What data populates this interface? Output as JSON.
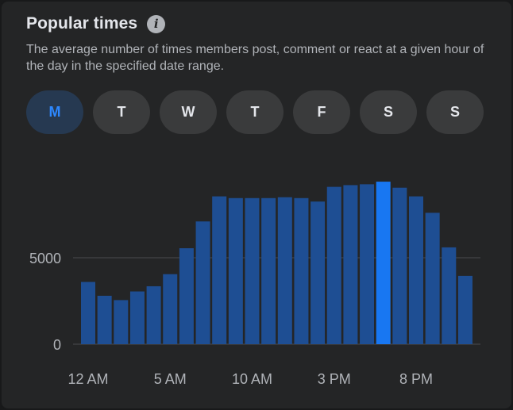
{
  "header": {
    "title": "Popular times",
    "info_icon": "info-icon",
    "subtitle": "The average number of times members post, comment or react at a given hour of the day in the specified date range."
  },
  "days": [
    {
      "label": "M",
      "selected": true
    },
    {
      "label": "T",
      "selected": false
    },
    {
      "label": "W",
      "selected": false
    },
    {
      "label": "T",
      "selected": false
    },
    {
      "label": "F",
      "selected": false
    },
    {
      "label": "S",
      "selected": false
    },
    {
      "label": "S",
      "selected": false
    }
  ],
  "colors": {
    "bar": "#1e4e93",
    "bar_highlight": "#1877f2",
    "selected_day_bg": "#263951",
    "selected_day_text": "#2d88ff",
    "gridline": "#4a4b4d"
  },
  "chart_data": {
    "type": "bar",
    "x": [
      0,
      1,
      2,
      3,
      4,
      5,
      6,
      7,
      8,
      9,
      10,
      11,
      12,
      13,
      14,
      15,
      16,
      17,
      18,
      19,
      20,
      21,
      22,
      23
    ],
    "values": [
      3600,
      2800,
      2550,
      3050,
      3350,
      4050,
      5550,
      7100,
      8550,
      8450,
      8450,
      8450,
      8500,
      8450,
      8250,
      9100,
      9200,
      9250,
      9400,
      9050,
      8550,
      7600,
      5600,
      3950
    ],
    "highlight_index": 18,
    "x_tick_labels": [
      {
        "x": 0,
        "label": "12 AM"
      },
      {
        "x": 5,
        "label": "5 AM"
      },
      {
        "x": 10,
        "label": "10 AM"
      },
      {
        "x": 15,
        "label": "3 PM"
      },
      {
        "x": 20,
        "label": "8 PM"
      }
    ],
    "y_ticks": [
      0,
      5000
    ],
    "ylim": [
      0,
      10000
    ],
    "grid": true
  }
}
